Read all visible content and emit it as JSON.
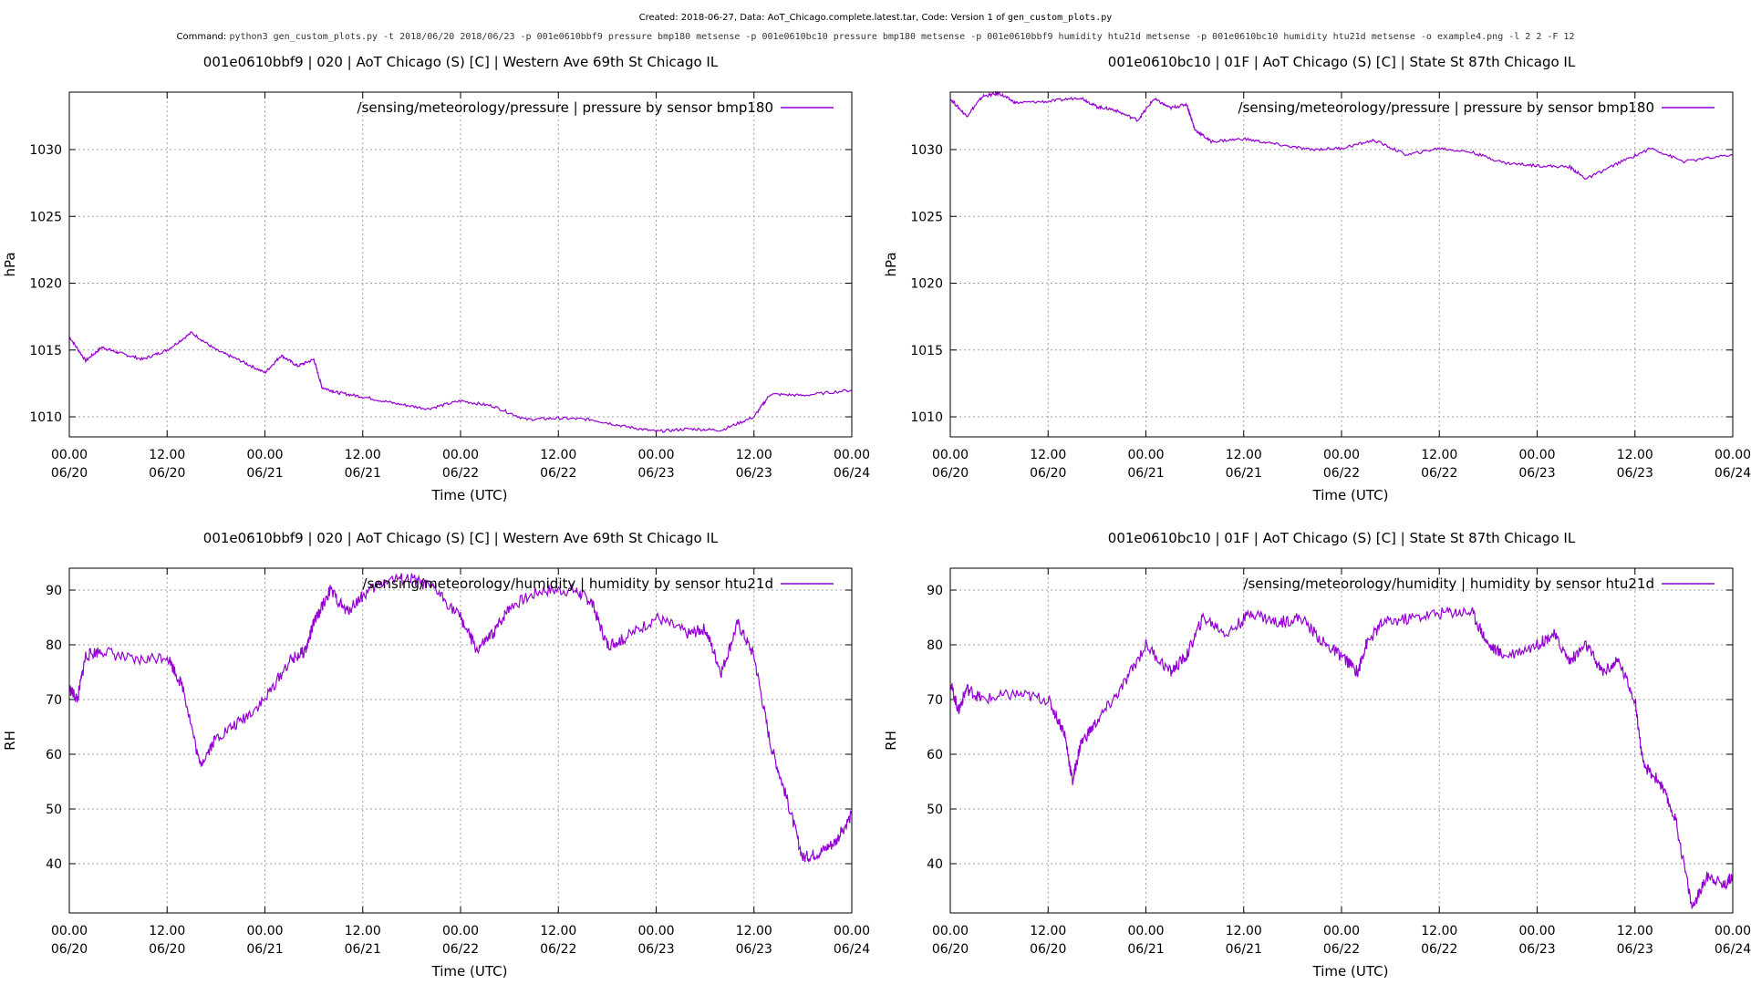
{
  "header": {
    "created_prefix": "Created: 2018-06-27, Data: AoT_Chicago.complete.latest.tar, Code: Version 1 of",
    "script_name": "gen_custom_plots.py",
    "command_label": "Command:",
    "command_text": "python3 gen_custom_plots.py -t 2018/06/20 2018/06/23 -p 001e0610bbf9 pressure bmp180 metsense -p 001e0610bc10 pressure bmp180 metsense -p 001e0610bbf9 humidity htu21d metsense -p 001e0610bc10 humidity htu21d metsense -o example4.png -l 2 2 -F 12"
  },
  "colors": {
    "series": "#9400d3",
    "grid": "#a0a0a0",
    "axis": "#000000"
  },
  "chart_data": [
    {
      "type": "line",
      "title": "001e0610bbf9 | 020 | AoT Chicago (S) [C] | Western Ave   69th St Chicago IL",
      "xlabel": "Time (UTC)",
      "ylabel": "hPa",
      "xlim": [
        "2018-06-20 00:00",
        "2018-06-24 00:00"
      ],
      "ylim": [
        1008.5,
        1034.3
      ],
      "yticks": [
        1010,
        1015,
        1020,
        1025,
        1030
      ],
      "xticks": [
        [
          "00.00",
          "06/20"
        ],
        [
          "12.00",
          "06/20"
        ],
        [
          "00.00",
          "06/21"
        ],
        [
          "12.00",
          "06/21"
        ],
        [
          "00.00",
          "06/22"
        ],
        [
          "12.00",
          "06/22"
        ],
        [
          "00.00",
          "06/23"
        ],
        [
          "12.00",
          "06/23"
        ],
        [
          "00.00",
          "06/24"
        ]
      ],
      "grid": true,
      "legend_position": "top-right",
      "series": [
        {
          "name": "/sensing/meteorology/pressure | pressure by sensor bmp180",
          "x": [
            "06/20 00:00",
            "06/20 02:00",
            "06/20 04:00",
            "06/20 06:00",
            "06/20 09:00",
            "06/20 12:00",
            "06/20 15:00",
            "06/20 18:00",
            "06/20 21:00",
            "06/21 00:00",
            "06/21 02:00",
            "06/21 04:00",
            "06/21 06:00",
            "06/21 07:00",
            "06/21 09:00",
            "06/21 12:00",
            "06/21 16:00",
            "06/21 20:00",
            "06/22 00:00",
            "06/22 04:00",
            "06/22 08:00",
            "06/22 12:00",
            "06/22 16:00",
            "06/22 20:00",
            "06/23 00:00",
            "06/23 04:00",
            "06/23 08:00",
            "06/23 12:00",
            "06/23 14:00",
            "06/23 18:00",
            "06/24 00:00"
          ],
          "y": [
            1016.0,
            1014.2,
            1015.2,
            1014.8,
            1014.3,
            1015.0,
            1016.3,
            1015.0,
            1014.2,
            1013.3,
            1014.6,
            1013.8,
            1014.3,
            1012.2,
            1011.8,
            1011.5,
            1011.0,
            1010.6,
            1011.2,
            1010.8,
            1009.8,
            1009.9,
            1009.8,
            1009.3,
            1008.9,
            1009.1,
            1009.0,
            1010.0,
            1011.7,
            1011.6,
            1012.0
          ]
        }
      ]
    },
    {
      "type": "line",
      "title": "001e0610bc10 | 01F | AoT Chicago (S) [C] | State St   87th Chicago IL",
      "xlabel": "Time (UTC)",
      "ylabel": "hPa",
      "xlim": [
        "2018-06-20 00:00",
        "2018-06-24 00:00"
      ],
      "ylim": [
        1008.5,
        1034.3
      ],
      "yticks": [
        1010,
        1015,
        1020,
        1025,
        1030
      ],
      "xticks": [
        [
          "00.00",
          "06/20"
        ],
        [
          "12.00",
          "06/20"
        ],
        [
          "00.00",
          "06/21"
        ],
        [
          "12.00",
          "06/21"
        ],
        [
          "00.00",
          "06/22"
        ],
        [
          "12.00",
          "06/22"
        ],
        [
          "00.00",
          "06/23"
        ],
        [
          "12.00",
          "06/23"
        ],
        [
          "00.00",
          "06/24"
        ]
      ],
      "grid": true,
      "legend_position": "top-right",
      "series": [
        {
          "name": "/sensing/meteorology/pressure | pressure by sensor bmp180",
          "x": [
            "06/20 00:00",
            "06/20 02:00",
            "06/20 04:00",
            "06/20 06:00",
            "06/20 08:00",
            "06/20 12:00",
            "06/20 16:00",
            "06/20 18:00",
            "06/20 20:00",
            "06/20 23:00",
            "06/21 01:00",
            "06/21 03:00",
            "06/21 05:00",
            "06/21 06:00",
            "06/21 08:00",
            "06/21 12:00",
            "06/21 16:00",
            "06/21 20:00",
            "06/22 00:00",
            "06/22 04:00",
            "06/22 08:00",
            "06/22 12:00",
            "06/22 16:00",
            "06/22 20:00",
            "06/23 00:00",
            "06/23 04:00",
            "06/23 06:00",
            "06/23 10:00",
            "06/23 14:00",
            "06/23 18:00",
            "06/24 00:00"
          ],
          "y": [
            1033.8,
            1032.5,
            1034.0,
            1034.2,
            1033.5,
            1033.6,
            1033.9,
            1033.2,
            1033.0,
            1032.2,
            1033.8,
            1033.1,
            1033.4,
            1031.5,
            1030.6,
            1030.8,
            1030.4,
            1030.0,
            1030.1,
            1030.7,
            1029.6,
            1030.1,
            1029.8,
            1029.0,
            1028.8,
            1028.7,
            1027.8,
            1029.0,
            1030.1,
            1029.1,
            1029.6
          ]
        }
      ]
    },
    {
      "type": "line",
      "title": "001e0610bbf9 | 020 | AoT Chicago (S) [C] | Western Ave   69th St Chicago IL",
      "xlabel": "Time (UTC)",
      "ylabel": "RH",
      "xlim": [
        "2018-06-20 00:00",
        "2018-06-24 00:00"
      ],
      "ylim": [
        31,
        94
      ],
      "yticks": [
        40,
        50,
        60,
        70,
        80,
        90
      ],
      "xticks": [
        [
          "00.00",
          "06/20"
        ],
        [
          "12.00",
          "06/20"
        ],
        [
          "00.00",
          "06/21"
        ],
        [
          "12.00",
          "06/21"
        ],
        [
          "00.00",
          "06/22"
        ],
        [
          "12.00",
          "06/22"
        ],
        [
          "00.00",
          "06/23"
        ],
        [
          "12.00",
          "06/23"
        ],
        [
          "00.00",
          "06/24"
        ]
      ],
      "grid": true,
      "legend_position": "top-right",
      "series": [
        {
          "name": "/sensing/meteorology/humidity | humidity by sensor htu21d",
          "x": [
            "06/20 00:00",
            "06/20 01:00",
            "06/20 02:00",
            "06/20 04:00",
            "06/20 08:00",
            "06/20 12:00",
            "06/20 14:00",
            "06/20 16:00",
            "06/20 18:00",
            "06/20 21:00",
            "06/21 00:00",
            "06/21 03:00",
            "06/21 05:00",
            "06/21 06:00",
            "06/21 08:00",
            "06/21 10:00",
            "06/21 12:00",
            "06/21 15:00",
            "06/21 18:00",
            "06/21 21:00",
            "06/22 00:00",
            "06/22 02:00",
            "06/22 04:00",
            "06/22 06:00",
            "06/22 10:00",
            "06/22 14:00",
            "06/22 16:00",
            "06/22 18:00",
            "06/22 20:00",
            "06/23 00:00",
            "06/23 04:00",
            "06/23 06:00",
            "06/23 08:00",
            "06/23 10:00",
            "06/23 12:00",
            "06/23 14:00",
            "06/23 16:00",
            "06/23 18:00",
            "06/23 20:00",
            "06/23 22:00",
            "06/24 00:00"
          ],
          "y": [
            72,
            70,
            78,
            79,
            77,
            78,
            72,
            58,
            63,
            66,
            70,
            77,
            79,
            84,
            90,
            86,
            89,
            92,
            92,
            90,
            85,
            79,
            82,
            87,
            90,
            90,
            88,
            80,
            81,
            85,
            82,
            83,
            75,
            84,
            78,
            62,
            52,
            41,
            42,
            44,
            49
          ]
        }
      ]
    },
    {
      "type": "line",
      "title": "001e0610bc10 | 01F | AoT Chicago (S) [C] | State St   87th Chicago IL",
      "xlabel": "Time (UTC)",
      "ylabel": "RH",
      "xlim": [
        "2018-06-20 00:00",
        "2018-06-24 00:00"
      ],
      "ylim": [
        31,
        94
      ],
      "yticks": [
        40,
        50,
        60,
        70,
        80,
        90
      ],
      "xticks": [
        [
          "00.00",
          "06/20"
        ],
        [
          "12.00",
          "06/20"
        ],
        [
          "00.00",
          "06/21"
        ],
        [
          "12.00",
          "06/21"
        ],
        [
          "00.00",
          "06/22"
        ],
        [
          "12.00",
          "06/22"
        ],
        [
          "00.00",
          "06/23"
        ],
        [
          "12.00",
          "06/23"
        ],
        [
          "00.00",
          "06/24"
        ]
      ],
      "grid": true,
      "legend_position": "top-right",
      "series": [
        {
          "name": "/sensing/meteorology/humidity | humidity by sensor htu21d",
          "x": [
            "06/20 00:00",
            "06/20 01:00",
            "06/20 02:00",
            "06/20 04:00",
            "06/20 08:00",
            "06/20 12:00",
            "06/20 14:00",
            "06/20 15:00",
            "06/20 16:00",
            "06/20 18:00",
            "06/20 21:00",
            "06/21 00:00",
            "06/21 03:00",
            "06/21 05:00",
            "06/21 07:00",
            "06/21 10:00",
            "06/21 13:00",
            "06/21 16:00",
            "06/21 19:00",
            "06/21 22:00",
            "06/22 00:00",
            "06/22 02:00",
            "06/22 03:00",
            "06/22 05:00",
            "06/22 09:00",
            "06/22 13:00",
            "06/22 16:00",
            "06/22 18:00",
            "06/22 20:00",
            "06/23 00:00",
            "06/23 02:00",
            "06/23 04:00",
            "06/23 06:00",
            "06/23 08:00",
            "06/23 10:00",
            "06/23 12:00",
            "06/23 13:00",
            "06/23 15:00",
            "06/23 17:00",
            "06/23 19:00",
            "06/23 21:00",
            "06/23 23:00",
            "06/24 00:00"
          ],
          "y": [
            73,
            68,
            72,
            70,
            71,
            70,
            64,
            55,
            62,
            66,
            72,
            80,
            75,
            78,
            85,
            82,
            86,
            84,
            85,
            80,
            78,
            75,
            80,
            84,
            85,
            86,
            86,
            80,
            78,
            80,
            82,
            77,
            80,
            75,
            77,
            70,
            58,
            55,
            48,
            32,
            38,
            36,
            38
          ]
        }
      ]
    }
  ]
}
